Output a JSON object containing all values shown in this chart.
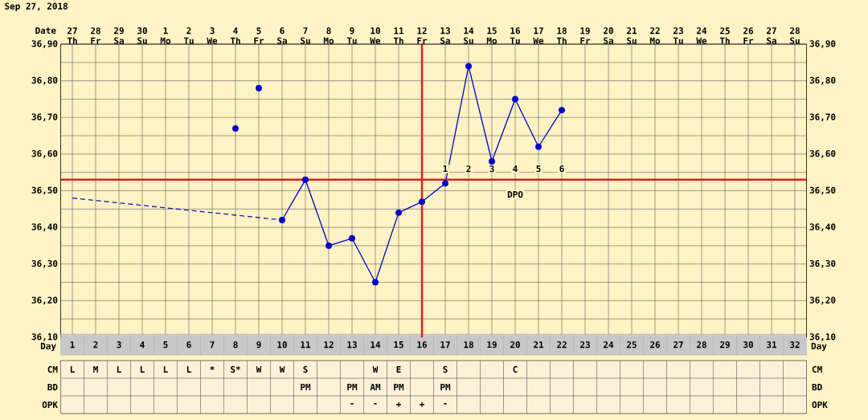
{
  "chart_data": [
    {
      "type": "line",
      "title": "Sep 27, 2018",
      "xlabel": "Day",
      "x2label": "Date",
      "xlim": [
        0.5,
        32.5
      ],
      "xticks": [
        1,
        2,
        3,
        4,
        5,
        6,
        7,
        8,
        9,
        10,
        11,
        12,
        13,
        14,
        15,
        16,
        17,
        18,
        19,
        20,
        21,
        22,
        23,
        24,
        25,
        26,
        27,
        28,
        29,
        30,
        31,
        32
      ],
      "x2lim": [
        "2018-09-26T12:00",
        "2018-10-28T12:00"
      ],
      "x2ticks": [
        {
          "value": "2018-09-27",
          "label": "27 Th"
        },
        {
          "value": "2018-09-28",
          "label": "28 Fr"
        },
        {
          "value": "2018-09-29",
          "label": "29 Sa"
        },
        {
          "value": "2018-09-30",
          "label": "30 Su"
        },
        {
          "value": "2018-10-01",
          "label": "1 Mo"
        },
        {
          "value": "2018-10-02",
          "label": "2 Tu"
        },
        {
          "value": "2018-10-03",
          "label": "3 We"
        },
        {
          "value": "2018-10-04",
          "label": "4 Th"
        },
        {
          "value": "2018-10-05",
          "label": "5 Fr"
        },
        {
          "value": "2018-10-06",
          "label": "6 Sa"
        },
        {
          "value": "2018-10-07",
          "label": "7 Su"
        },
        {
          "value": "2018-10-08",
          "label": "8 Mo"
        },
        {
          "value": "2018-10-09",
          "label": "9 Tu"
        },
        {
          "value": "2018-10-10",
          "label": "10 We"
        },
        {
          "value": "2018-10-11",
          "label": "11 Th"
        },
        {
          "value": "2018-10-12",
          "label": "12 Fr"
        },
        {
          "value": "2018-10-13",
          "label": "13 Sa"
        },
        {
          "value": "2018-10-14",
          "label": "14 Su"
        },
        {
          "value": "2018-10-15",
          "label": "15 Mo"
        },
        {
          "value": "2018-10-16",
          "label": "16 Tu"
        },
        {
          "value": "2018-10-17",
          "label": "17 We"
        },
        {
          "value": "2018-10-18",
          "label": "18 Th"
        },
        {
          "value": "2018-10-19",
          "label": "19 Fr"
        },
        {
          "value": "2018-10-20",
          "label": "20 Sa"
        },
        {
          "value": "2018-10-21",
          "label": "21 Su"
        },
        {
          "value": "2018-10-22",
          "label": "22 Mo"
        },
        {
          "value": "2018-10-23",
          "label": "23 Tu"
        },
        {
          "value": "2018-10-24",
          "label": "24 We"
        },
        {
          "value": "2018-10-25",
          "label": "25 Th"
        },
        {
          "value": "2018-10-26",
          "label": "26 Fr"
        },
        {
          "value": "2018-10-27",
          "label": "27 Sa"
        },
        {
          "value": "2018-10-28",
          "label": "28 Su"
        }
      ],
      "ylim": [
        36.1,
        36.9
      ],
      "yticks": [
        {
          "value": 36.1,
          "label": "36,10"
        },
        {
          "value": 36.2,
          "label": "36,20"
        },
        {
          "value": 36.3,
          "label": "36,30"
        },
        {
          "value": 36.4,
          "label": "36,40"
        },
        {
          "value": 36.5,
          "label": "36,50"
        },
        {
          "value": 36.6,
          "label": "36,60"
        },
        {
          "value": 36.7,
          "label": "36,70"
        },
        {
          "value": 36.8,
          "label": "36,80"
        },
        {
          "value": 36.9,
          "label": "36,90"
        }
      ],
      "y2lim": [
        36.1,
        36.9
      ],
      "y2ticks": [
        {
          "value": 36.1,
          "label": "36,10"
        },
        {
          "value": 36.2,
          "label": "36,20"
        },
        {
          "value": 36.3,
          "label": "36,30"
        },
        {
          "value": 36.4,
          "label": "36,40"
        },
        {
          "value": 36.5,
          "label": "36,50"
        },
        {
          "value": 36.6,
          "label": "36,60"
        },
        {
          "value": 36.7,
          "label": "36,70"
        },
        {
          "value": 36.8,
          "label": "36,80"
        },
        {
          "value": 36.9,
          "label": "36,90"
        }
      ],
      "grid": true,
      "marker": "circle",
      "series": [
        {
          "color": "#1a1aa8",
          "line_style": "dashed",
          "marker": "none",
          "x": [
            1,
            10
          ],
          "values": [
            36.48,
            36.42
          ]
        },
        {
          "type": "scatter",
          "color": "#0000cc",
          "x": [
            8,
            9
          ],
          "values": [
            36.67,
            36.78
          ]
        },
        {
          "color": "#0000cc",
          "x": [
            10,
            11,
            12,
            13,
            14,
            15,
            16,
            17,
            18,
            19,
            20,
            21,
            22
          ],
          "values": [
            36.42,
            36.53,
            36.35,
            36.37,
            36.25,
            36.44,
            36.47,
            36.52,
            36.84,
            36.58,
            36.75,
            36.62,
            36.72
          ]
        }
      ],
      "ref_lines": [
        {
          "axis": "y",
          "value": 36.53,
          "color": "#e02020"
        },
        {
          "axis": "x",
          "value": 16,
          "color": "#e02020"
        }
      ],
      "annotations": [
        {
          "text": "1",
          "x": 17,
          "y": 36.56
        },
        {
          "text": "2",
          "x": 18,
          "y": 36.56
        },
        {
          "text": "3",
          "x": 19,
          "y": 36.56
        },
        {
          "text": "4",
          "x": 20,
          "y": 36.56
        },
        {
          "text": "5",
          "x": 21,
          "y": 36.56
        },
        {
          "text": "6",
          "x": 22,
          "y": 36.56
        },
        {
          "text": "DPO",
          "x": 20,
          "y": 36.49
        }
      ]
    },
    {
      "type": "heatmap",
      "categories": [
        null,
        null,
        null,
        null,
        null,
        null,
        null,
        null,
        null,
        null,
        null,
        null,
        null,
        null,
        null,
        null,
        null,
        null,
        null,
        null,
        null,
        null,
        null,
        null,
        null,
        null,
        null,
        null,
        null,
        null,
        null,
        null
      ],
      "y_categories": [
        "CM",
        "BD",
        "OPK"
      ],
      "y2_categories": [
        "CM",
        "BD",
        "OPK"
      ],
      "cells": [
        [
          null,
          null,
          null,
          null,
          null,
          null,
          null,
          null,
          null,
          null,
          null,
          null,
          null,
          null,
          null,
          null,
          null,
          null,
          null,
          null,
          null,
          null,
          null,
          null,
          null,
          null,
          null,
          null,
          null,
          null,
          null,
          null
        ],
        [
          null,
          null,
          null,
          null,
          null,
          null,
          null,
          null,
          null,
          null,
          null,
          null,
          null,
          null,
          null,
          null,
          null,
          null,
          null,
          null,
          null,
          null,
          null,
          null,
          null,
          null,
          null,
          null,
          null,
          null,
          null,
          null
        ],
        [
          null,
          null,
          null,
          null,
          null,
          null,
          null,
          null,
          null,
          null,
          null,
          null,
          null,
          null,
          null,
          null,
          null,
          null,
          null,
          null,
          null,
          null,
          null,
          null,
          null,
          null,
          null,
          null,
          null,
          null,
          null,
          null
        ]
      ],
      "cell_labels": [
        [
          "L",
          "M",
          "L",
          "L",
          "L",
          "L",
          "*",
          "S*",
          "W",
          "W",
          "S",
          null,
          null,
          "W",
          "E",
          null,
          "S",
          null,
          null,
          "C",
          null,
          null,
          null,
          null,
          null,
          null,
          null,
          null,
          null,
          null,
          null,
          null
        ],
        [
          null,
          null,
          null,
          null,
          null,
          null,
          null,
          null,
          null,
          null,
          "PM",
          null,
          "PM",
          "AM",
          "PM",
          null,
          "PM",
          null,
          null,
          null,
          null,
          null,
          null,
          null,
          null,
          null,
          null,
          null,
          null,
          null,
          null,
          null
        ],
        [
          null,
          null,
          null,
          null,
          null,
          null,
          null,
          null,
          null,
          null,
          null,
          null,
          "-",
          "-",
          "+",
          "+",
          "-",
          null,
          null,
          null,
          null,
          null,
          null,
          null,
          null,
          null,
          null,
          null,
          null,
          null,
          null,
          null
        ]
      ]
    }
  ]
}
